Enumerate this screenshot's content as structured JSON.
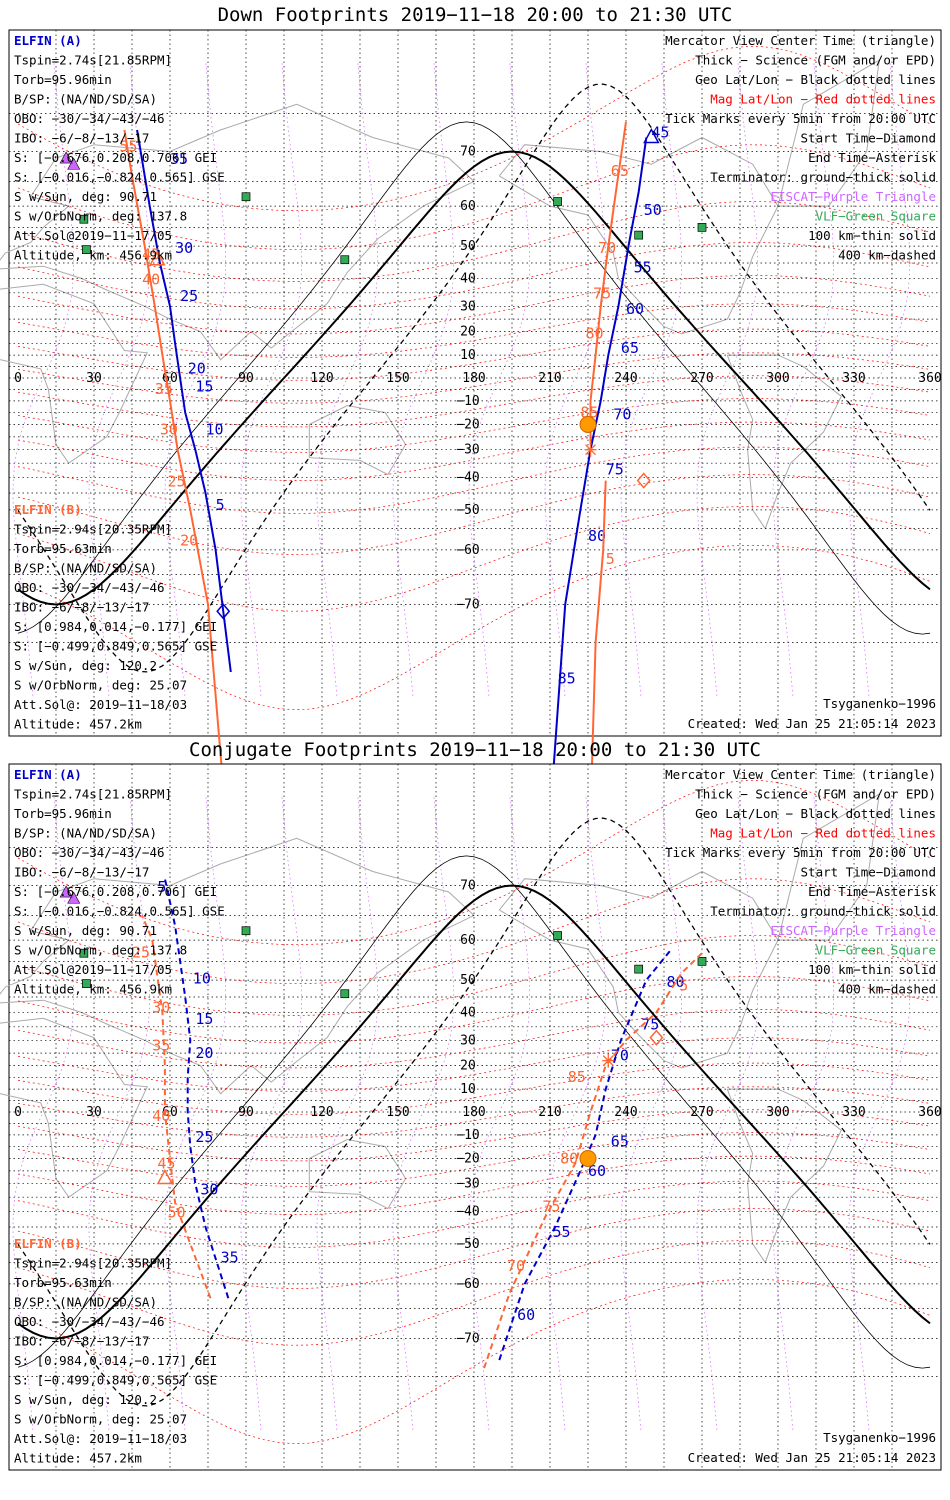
{
  "colors": {
    "elfin_a": "#0000cc",
    "elfin_b": "#ff6633",
    "mag_grid": "#ff0000",
    "eiscat": "#cc66ff",
    "vlf": "#33aa55",
    "coast": "#aaaaaa",
    "terminator": "#000000",
    "subsolar": "#ff9900"
  },
  "panels": [
    {
      "title": "Down Footprints 2019−11−18 20:00 to 21:30 UTC",
      "elfin_a": {
        "header": "ELFIN (A)",
        "lines": [
          "Tspin=2.74s[21.85RPM]",
          "Torb=95.96min",
          "B/SP: (NA/ND/SD/SA)",
          "OBO: −30/−34/−43/−46",
          "IBO: −6/−8/−13/−17",
          "S: [−0.676,0.208,0.706] GEI",
          "S: [−0.016,−0.824,0.565] GSE",
          "S w/Sun, deg: 90.71",
          "S w/OrbNorm, deg: 137.8",
          "Att.Sol@2019−11−17/05",
          "Altitude, km: 456.9km"
        ]
      },
      "elfin_b": {
        "header": "ELFIN (B)",
        "lines": [
          "Tspin=2.94s[20.35RPM]",
          "Torb=95.63min",
          "B/SP: (NA/ND/SD/SA)",
          "OBO: −30/−34/−43/−46",
          "IBO: −6/−8/−13/−17",
          "S: [0.984,0.014,−0.177] GEI",
          "S: [−0.499,0.849,0.565] GSE",
          "S w/Sun, deg: 120.2",
          "S w/OrbNorm, deg: 25.07",
          "Att.Sol@: 2019−11−18/03",
          "Altitude: 457.2km"
        ]
      },
      "legend": [
        "Mercator View Center Time (triangle)",
        "Thick − Science (FGM and/or EPD)",
        "Geo Lat/Lon − Black dotted lines",
        "Mag Lat/Lon − Red dotted lines",
        "Tick Marks every 5min from 20:00 UTC",
        "Start Time−Diamond",
        "End Time−Asterisk",
        "Terminator: ground−thick solid",
        "EISCAT−Purple Triangle",
        "VLF−Green Square",
        "100 km−thin solid",
        "400 km−dashed"
      ],
      "model": "Tsyganenko−1996",
      "created": "Created: Wed Jan 25 21:05:14 2023"
    },
    {
      "title": "Conjugate Footprints 2019−11−18 20:00 to 21:30 UTC",
      "elfin_a": {
        "header": "ELFIN (A)",
        "lines": [
          "Tspin=2.74s[21.85RPM]",
          "Torb=95.96min",
          "B/SP: (NA/ND/SD/SA)",
          "OBO: −30/−34/−43/−46",
          "IBO: −6/−8/−13/−17",
          "S: [−0.676,0.208,0.706] GEI",
          "S: [−0.016,−0.824,0.565] GSE",
          "S w/Sun, deg: 90.71",
          "S w/OrbNorm, deg: 137.8",
          "Att.Sol@2019−11−17/05",
          "Altitude, km: 456.9km"
        ]
      },
      "elfin_b": {
        "header": "ELFIN (B)",
        "lines": [
          "Tspin=2.94s[20.35RPM]",
          "Torb=95.63min",
          "B/SP: (NA/ND/SD/SA)",
          "OBO: −30/−34/−43/−46",
          "IBO: −6/−8/−13/−17",
          "S: [0.984,0.014,−0.177] GEI",
          "S: [−0.499,0.849,0.565] GSE",
          "S w/Sun, deg: 120.2",
          "S w/OrbNorm, deg: 25.07",
          "Att.Sol@: 2019−11−18/03",
          "Altitude: 457.2km"
        ]
      },
      "legend": [
        "Mercator View Center Time (triangle)",
        "Thick − Science (FGM and/or EPD)",
        "Geo Lat/Lon − Black dotted lines",
        "Mag Lat/Lon − Red dotted lines",
        "Tick Marks every 5min from 20:00 UTC",
        "Start Time−Diamond",
        "End Time−Asterisk",
        "Terminator: ground−thick solid",
        "EISCAT−Purple Triangle",
        "VLF−Green Square",
        "100 km−thin solid",
        "400 km−dashed"
      ],
      "model": "Tsyganenko−1996",
      "created": "Created: Wed Jan 25 21:05:14 2023"
    }
  ],
  "chart_data": [
    {
      "type": "scatter",
      "title": "Down Footprints 2019−11−18 20:00 to 21:30 UTC",
      "projection": "mercator",
      "xlim": [
        0,
        360
      ],
      "ylim": [
        -80,
        80
      ],
      "lon_ticks": [
        0,
        30,
        60,
        90,
        120,
        150,
        180,
        210,
        240,
        270,
        300,
        330,
        360
      ],
      "lat_tick_labels": [
        70,
        60,
        50,
        40,
        30,
        20,
        10,
        -10,
        -20,
        -30,
        -40,
        -50,
        -60,
        -70
      ],
      "grid": true,
      "series": [
        {
          "name": "ELFIN (A)",
          "points": [
            [
              84,
              -78
            ],
            [
              78,
              -60
            ],
            [
              74,
              -45
            ],
            [
              70,
              -30
            ],
            [
              66,
              -15
            ],
            [
              64,
              0
            ],
            [
              62,
              15
            ],
            [
              60,
              30
            ],
            [
              56,
              45
            ],
            [
              52,
              60
            ],
            [
              47,
              73
            ]
          ],
          "labels": [
            {
              "text": "5",
              "lon": 78,
              "lat": -50
            },
            {
              "text": "10",
              "lon": 74,
              "lat": -24
            },
            {
              "text": "15",
              "lon": 70,
              "lat": -6
            },
            {
              "text": "20",
              "lon": 67,
              "lat": 2
            },
            {
              "text": "25",
              "lon": 64,
              "lat": 32
            },
            {
              "text": "30",
              "lon": 62,
              "lat": 48
            },
            {
              "text": "35",
              "lon": 60,
              "lat": 68
            }
          ]
        },
        {
          "name": "ELFIN (B)",
          "points": [
            [
              82,
              -86
            ],
            [
              75,
              -70
            ],
            [
              68,
              -50
            ],
            [
              63,
              -30
            ],
            [
              60,
              -10
            ],
            [
              57,
              10
            ],
            [
              54,
              30
            ],
            [
              50,
              50
            ],
            [
              45,
              66
            ],
            [
              42,
              73
            ]
          ],
          "labels": [
            {
              "text": "20",
              "lon": 64,
              "lat": -59
            },
            {
              "text": "25",
              "lon": 59,
              "lat": -43
            },
            {
              "text": "30",
              "lon": 56,
              "lat": -24
            },
            {
              "text": "35",
              "lon": 54,
              "lat": -7
            },
            {
              "text": "40",
              "lon": 49,
              "lat": 38
            },
            {
              "text": "45",
              "lon": 49,
              "lat": 46
            },
            {
              "text": "55",
              "lon": 40,
              "lat": 70
            }
          ]
        },
        {
          "name": "ELFIN (A) second pass",
          "points": [
            [
              209,
              -87
            ],
            [
              216,
              -70
            ],
            [
              222,
              -50
            ],
            [
              226,
              -30
            ],
            [
              230,
              -10
            ],
            [
              233,
              10
            ],
            [
              237,
              30
            ],
            [
              241,
              50
            ],
            [
              245,
              63
            ],
            [
              248,
              72
            ]
          ],
          "labels": [
            {
              "text": "45",
              "lon": 250,
              "lat": 72
            },
            {
              "text": "50",
              "lon": 247,
              "lat": 58
            },
            {
              "text": "55",
              "lon": 243,
              "lat": 42
            },
            {
              "text": "60",
              "lon": 240,
              "lat": 27
            },
            {
              "text": "65",
              "lon": 238,
              "lat": 11
            },
            {
              "text": "70",
              "lon": 235,
              "lat": -18
            },
            {
              "text": "75",
              "lon": 232,
              "lat": -39
            },
            {
              "text": "80",
              "lon": 225,
              "lat": -58
            },
            {
              "text": "85",
              "lon": 213,
              "lat": -79
            }
          ]
        },
        {
          "name": "ELFIN (B) second pass",
          "points": [
            [
              232,
              -41
            ],
            [
              231,
              -60
            ],
            [
              228,
              -75
            ],
            [
              226,
              -86
            ]
          ],
          "labels": [
            {
              "text": "5",
              "lon": 232,
              "lat": -63
            }
          ]
        },
        {
          "name": "ELFIN (B) second pass north",
          "points": [
            [
              226,
              -28
            ],
            [
              226,
              -10
            ],
            [
              228,
              10
            ],
            [
              230,
              30
            ],
            [
              233,
              50
            ],
            [
              236,
              63
            ],
            [
              240,
              74
            ]
          ],
          "labels": [
            {
              "text": "65",
              "lon": 234,
              "lat": 66
            },
            {
              "text": "70",
              "lon": 229,
              "lat": 48
            },
            {
              "text": "75",
              "lon": 227,
              "lat": 33
            },
            {
              "text": "80",
              "lon": 224,
              "lat": 17
            },
            {
              "text": "85",
              "lon": 222,
              "lat": -17
            }
          ]
        }
      ],
      "markers": [
        {
          "symbol": "triangle",
          "color": "#0000cc",
          "lon": 250,
          "lat": 72
        },
        {
          "symbol": "triangle",
          "color": "#ff6633",
          "lon": 55,
          "lat": 46
        },
        {
          "symbol": "diamond",
          "color": "#0000cc",
          "lon": 81,
          "lat": -71
        },
        {
          "symbol": "diamond",
          "color": "#ff6633",
          "lon": 247,
          "lat": -41
        },
        {
          "symbol": "asterisk",
          "color": "#ff6633",
          "lon": 226,
          "lat": -30
        },
        {
          "symbol": "subsolar",
          "color": "#ff9900",
          "lon": 225,
          "lat": -20
        }
      ],
      "stations_vlf": [
        [
          90,
          62
        ],
        [
          26,
          57
        ],
        [
          27,
          49
        ],
        [
          129,
          46
        ],
        [
          213,
          61
        ],
        [
          245,
          53
        ],
        [
          270,
          55
        ]
      ],
      "stations_eiscat": [
        [
          22,
          68
        ],
        [
          19,
          69
        ]
      ]
    },
    {
      "type": "scatter",
      "title": "Conjugate Footprints 2019−11−18 20:00 to 21:30 UTC",
      "projection": "mercator",
      "xlim": [
        0,
        360
      ],
      "ylim": [
        -80,
        80
      ],
      "lon_ticks": [
        0,
        30,
        60,
        90,
        120,
        150,
        180,
        210,
        240,
        270,
        300,
        330,
        360
      ],
      "lat_tick_labels": [
        70,
        60,
        50,
        40,
        30,
        20,
        10,
        -10,
        -20,
        -30,
        -40,
        -50,
        -60,
        -70
      ],
      "grid": true,
      "series": [
        {
          "name": "ELFIN (A)",
          "points": [
            [
              83,
              -63
            ],
            [
              74,
              -45
            ],
            [
              70,
              -30
            ],
            [
              68,
              -15
            ],
            [
              67,
              0
            ],
            [
              67,
              15
            ],
            [
              68,
              30
            ],
            [
              66,
              45
            ],
            [
              62,
              63
            ],
            [
              58,
              71
            ]
          ],
          "labels": [
            {
              "text": "5",
              "lon": 55,
              "lat": 69
            },
            {
              "text": "10",
              "lon": 69,
              "lat": 49
            },
            {
              "text": "15",
              "lon": 70,
              "lat": 36
            },
            {
              "text": "20",
              "lon": 70,
              "lat": 23
            },
            {
              "text": "25",
              "lon": 70,
              "lat": -13
            },
            {
              "text": "30",
              "lon": 72,
              "lat": -34
            },
            {
              "text": "35",
              "lon": 80,
              "lat": -55
            }
          ]
        },
        {
          "name": "ELFIN (B)",
          "points": [
            [
              76,
              -63
            ],
            [
              68,
              -50
            ],
            [
              62,
              -37
            ],
            [
              60,
              -20
            ],
            [
              58,
              0
            ],
            [
              58,
              20
            ],
            [
              57,
              40
            ],
            [
              53,
              60
            ],
            [
              49,
              65
            ]
          ],
          "labels": [
            {
              "text": "25",
              "lon": 45,
              "lat": 56
            },
            {
              "text": "30",
              "lon": 53,
              "lat": 40
            },
            {
              "text": "35",
              "lon": 53,
              "lat": 26
            },
            {
              "text": "40",
              "lon": 53,
              "lat": -4
            },
            {
              "text": "45",
              "lon": 55,
              "lat": -24
            },
            {
              "text": "50",
              "lon": 59,
              "lat": -42
            }
          ]
        },
        {
          "name": "ELFIN (A) second pass",
          "points": [
            [
              190,
              -73
            ],
            [
              200,
              -60
            ],
            [
              212,
              -45
            ],
            [
              222,
              -25
            ],
            [
              228,
              -10
            ],
            [
              232,
              10
            ],
            [
              238,
              30
            ],
            [
              248,
              50
            ],
            [
              258,
              58
            ]
          ],
          "labels": [
            {
              "text": "60",
              "lon": 197,
              "lat": -67
            },
            {
              "text": "55",
              "lon": 211,
              "lat": -48
            },
            {
              "text": "60",
              "lon": 225,
              "lat": -27
            },
            {
              "text": "65",
              "lon": 234,
              "lat": -15
            },
            {
              "text": "70",
              "lon": 234,
              "lat": 22
            },
            {
              "text": "75",
              "lon": 246,
              "lat": 34
            },
            {
              "text": "80",
              "lon": 256,
              "lat": 48
            }
          ]
        },
        {
          "name": "ELFIN (B) second pass",
          "points": [
            [
              184,
              -74
            ],
            [
              194,
              -62
            ],
            [
              208,
              -42
            ],
            [
              220,
              -22
            ],
            [
              226,
              0
            ],
            [
              232,
              20
            ],
            [
              240,
              30
            ],
            [
              252,
              40
            ],
            [
              262,
              52
            ],
            [
              270,
              57
            ]
          ],
          "labels": [
            {
              "text": "70",
              "lon": 193,
              "lat": -57
            },
            {
              "text": "75",
              "lon": 207,
              "lat": -40
            },
            {
              "text": "80",
              "lon": 214,
              "lat": -22
            },
            {
              "text": "85",
              "lon": 217,
              "lat": 13
            },
            {
              "text": "5",
              "lon": 261,
              "lat": 47
            }
          ]
        }
      ],
      "markers": [
        {
          "symbol": "triangle",
          "color": "#ff6633",
          "lon": 58,
          "lat": -28
        },
        {
          "symbol": "diamond",
          "color": "#ff6633",
          "lon": 252,
          "lat": 31
        },
        {
          "symbol": "asterisk",
          "color": "#ff6633",
          "lon": 233,
          "lat": 22
        },
        {
          "symbol": "subsolar",
          "color": "#ff9900",
          "lon": 225,
          "lat": -20
        }
      ],
      "stations_vlf": [
        [
          90,
          62
        ],
        [
          26,
          57
        ],
        [
          27,
          49
        ],
        [
          129,
          46
        ],
        [
          213,
          61
        ],
        [
          245,
          53
        ],
        [
          270,
          55
        ]
      ],
      "stations_eiscat": [
        [
          22,
          68
        ],
        [
          19,
          69
        ]
      ]
    }
  ]
}
